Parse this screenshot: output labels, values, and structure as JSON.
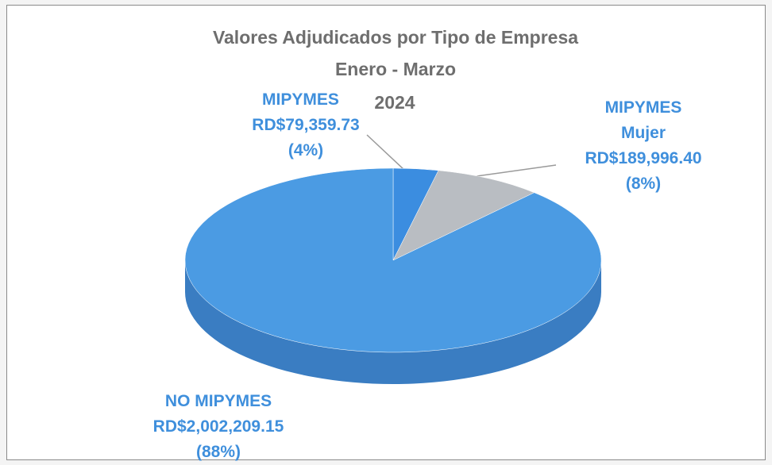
{
  "chart_data": {
    "type": "pie3d",
    "title": "Valores Adjudicados por Tipo de Empresa",
    "subtitle": "Enero - Marzo",
    "year": "2024",
    "categories": [
      "MIPYMES",
      "MIPYMES Mujer",
      "NO MIPYMES"
    ],
    "values": [
      79359.73,
      189996.4,
      2002209.15
    ],
    "value_labels": [
      "RD$79,359.73",
      "RD$189,996.40",
      "RD$2,002,209.15"
    ],
    "percents": [
      4,
      8,
      88
    ],
    "percent_labels": [
      "(4%)",
      "(8%)",
      "(88%)"
    ],
    "colors": [
      "#3b8de0",
      "#b9bdc2",
      "#4b9be3"
    ],
    "side_colors": [
      "#2f72b8",
      "#8f9399",
      "#3a7dc2"
    ]
  }
}
